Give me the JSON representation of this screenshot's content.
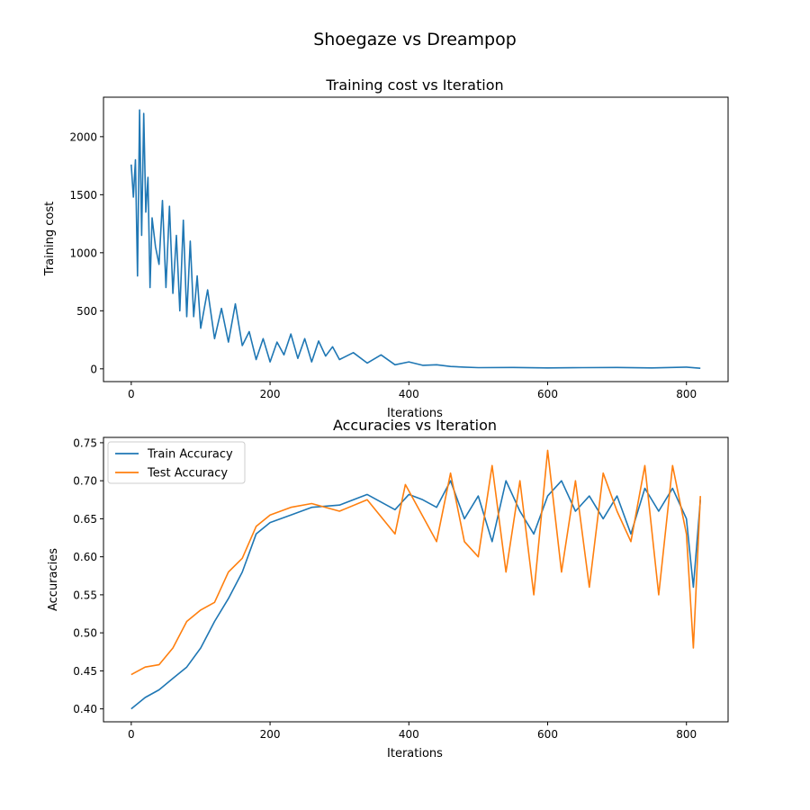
{
  "figure": {
    "title": "Shoegaze vs Dreampop"
  },
  "colors": {
    "train": "#1f77b4",
    "test": "#ff7f0e"
  },
  "chart_data": [
    {
      "type": "line",
      "title": "Training cost vs Iteration",
      "xlabel": "Iterations",
      "ylabel": "Training cost",
      "xlim": [
        -40,
        860
      ],
      "ylim": [
        -110,
        2340
      ],
      "xticks": [
        0,
        200,
        400,
        600,
        800
      ],
      "xtick_labels": [
        "0",
        "200",
        "400",
        "600",
        "800"
      ],
      "yticks": [
        0,
        500,
        1000,
        1500,
        2000
      ],
      "ytick_labels": [
        "0",
        "500",
        "1000",
        "1500",
        "2000"
      ],
      "grid": false,
      "legend": null,
      "series": [
        {
          "color": "#1f77b4",
          "x": [
            0,
            3,
            6,
            9,
            12,
            15,
            18,
            21,
            24,
            27,
            30,
            35,
            40,
            45,
            50,
            55,
            60,
            65,
            70,
            75,
            80,
            85,
            90,
            95,
            100,
            110,
            120,
            130,
            140,
            150,
            160,
            170,
            180,
            190,
            200,
            210,
            220,
            230,
            240,
            250,
            260,
            270,
            280,
            290,
            300,
            320,
            340,
            360,
            380,
            400,
            420,
            440,
            460,
            480,
            500,
            550,
            600,
            650,
            700,
            750,
            800,
            820
          ],
          "y": [
            1760,
            1480,
            1800,
            800,
            2230,
            1150,
            2200,
            1350,
            1650,
            700,
            1300,
            1050,
            900,
            1450,
            700,
            1400,
            650,
            1150,
            500,
            1280,
            450,
            1100,
            450,
            800,
            350,
            680,
            260,
            520,
            230,
            560,
            200,
            320,
            80,
            260,
            60,
            230,
            120,
            300,
            90,
            260,
            60,
            240,
            110,
            190,
            80,
            140,
            50,
            120,
            35,
            60,
            30,
            35,
            20,
            15,
            10,
            12,
            8,
            10,
            12,
            8,
            15,
            5
          ]
        }
      ]
    },
    {
      "type": "line",
      "title": "Accuracies vs Iteration",
      "xlabel": "Iterations",
      "ylabel": "Accuracies",
      "xlim": [
        -40,
        860
      ],
      "ylim": [
        0.383,
        0.757
      ],
      "xticks": [
        0,
        200,
        400,
        600,
        800
      ],
      "xtick_labels": [
        "0",
        "200",
        "400",
        "600",
        "800"
      ],
      "yticks": [
        0.4,
        0.45,
        0.5,
        0.55,
        0.6,
        0.65,
        0.7,
        0.75
      ],
      "ytick_labels": [
        "0.40",
        "0.45",
        "0.50",
        "0.55",
        "0.60",
        "0.65",
        "0.70",
        "0.75"
      ],
      "grid": false,
      "legend": "top-left",
      "series": [
        {
          "name": "Train Accuracy",
          "color": "#1f77b4",
          "x": [
            0,
            20,
            40,
            60,
            80,
            100,
            120,
            140,
            160,
            180,
            200,
            230,
            260,
            300,
            340,
            380,
            400,
            420,
            440,
            460,
            480,
            500,
            520,
            540,
            560,
            580,
            600,
            620,
            640,
            660,
            680,
            700,
            720,
            740,
            760,
            780,
            800,
            810,
            820
          ],
          "y": [
            0.4,
            0.415,
            0.425,
            0.44,
            0.455,
            0.48,
            0.515,
            0.545,
            0.58,
            0.63,
            0.645,
            0.655,
            0.665,
            0.668,
            0.682,
            0.662,
            0.682,
            0.675,
            0.665,
            0.7,
            0.65,
            0.68,
            0.62,
            0.7,
            0.66,
            0.63,
            0.68,
            0.7,
            0.66,
            0.68,
            0.65,
            0.68,
            0.63,
            0.69,
            0.66,
            0.69,
            0.65,
            0.56,
            0.675
          ]
        },
        {
          "name": "Test Accuracy",
          "color": "#ff7f0e",
          "x": [
            0,
            20,
            40,
            60,
            80,
            100,
            120,
            140,
            160,
            180,
            200,
            230,
            260,
            300,
            340,
            380,
            395,
            410,
            440,
            460,
            480,
            500,
            520,
            540,
            560,
            580,
            600,
            620,
            640,
            660,
            680,
            700,
            720,
            740,
            760,
            780,
            800,
            810,
            820
          ],
          "y": [
            0.445,
            0.455,
            0.458,
            0.48,
            0.515,
            0.53,
            0.54,
            0.58,
            0.598,
            0.64,
            0.655,
            0.665,
            0.67,
            0.66,
            0.675,
            0.63,
            0.695,
            0.67,
            0.62,
            0.71,
            0.62,
            0.6,
            0.72,
            0.58,
            0.7,
            0.55,
            0.74,
            0.58,
            0.7,
            0.56,
            0.71,
            0.66,
            0.62,
            0.72,
            0.55,
            0.72,
            0.63,
            0.48,
            0.68
          ]
        }
      ]
    }
  ]
}
